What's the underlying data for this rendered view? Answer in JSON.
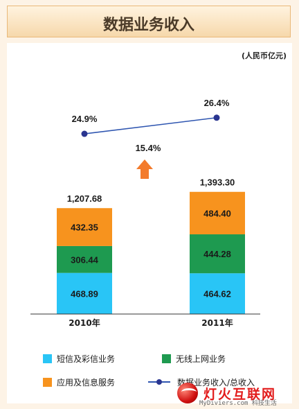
{
  "header": {
    "title": "数据业务收入"
  },
  "chart_data": {
    "type": "bar",
    "stacked": true,
    "title": "数据业务收入",
    "unit": "(人民币亿元)",
    "categories": [
      "2010年",
      "2011年"
    ],
    "series": [
      {
        "name": "短信及彩信业务",
        "values": [
          468.89,
          464.62
        ],
        "color": "#29c5f6"
      },
      {
        "name": "无线上网业务",
        "values": [
          306.44,
          444.28
        ],
        "color": "#1e9a50"
      },
      {
        "name": "应用及信息服务",
        "values": [
          432.35,
          484.4
        ],
        "color": "#f7931e"
      }
    ],
    "totals": [
      "1,207.68",
      "1,393.30"
    ],
    "value_labels": [
      [
        "468.89",
        "306.44",
        "432.35"
      ],
      [
        "464.62",
        "444.28",
        "484.40"
      ]
    ],
    "ratio_series": {
      "name": "数据业务收入/总收入",
      "values": [
        24.9,
        26.4
      ],
      "labels": [
        "24.9%",
        "26.4%"
      ],
      "color": "#2e55b0"
    },
    "growth": {
      "label": "15.4%",
      "arrow_color": "#f37b2c"
    },
    "legend_position": "bottom"
  },
  "watermark": {
    "text": "灯火互联网",
    "url": "MyDiviers.com 科技生活"
  }
}
